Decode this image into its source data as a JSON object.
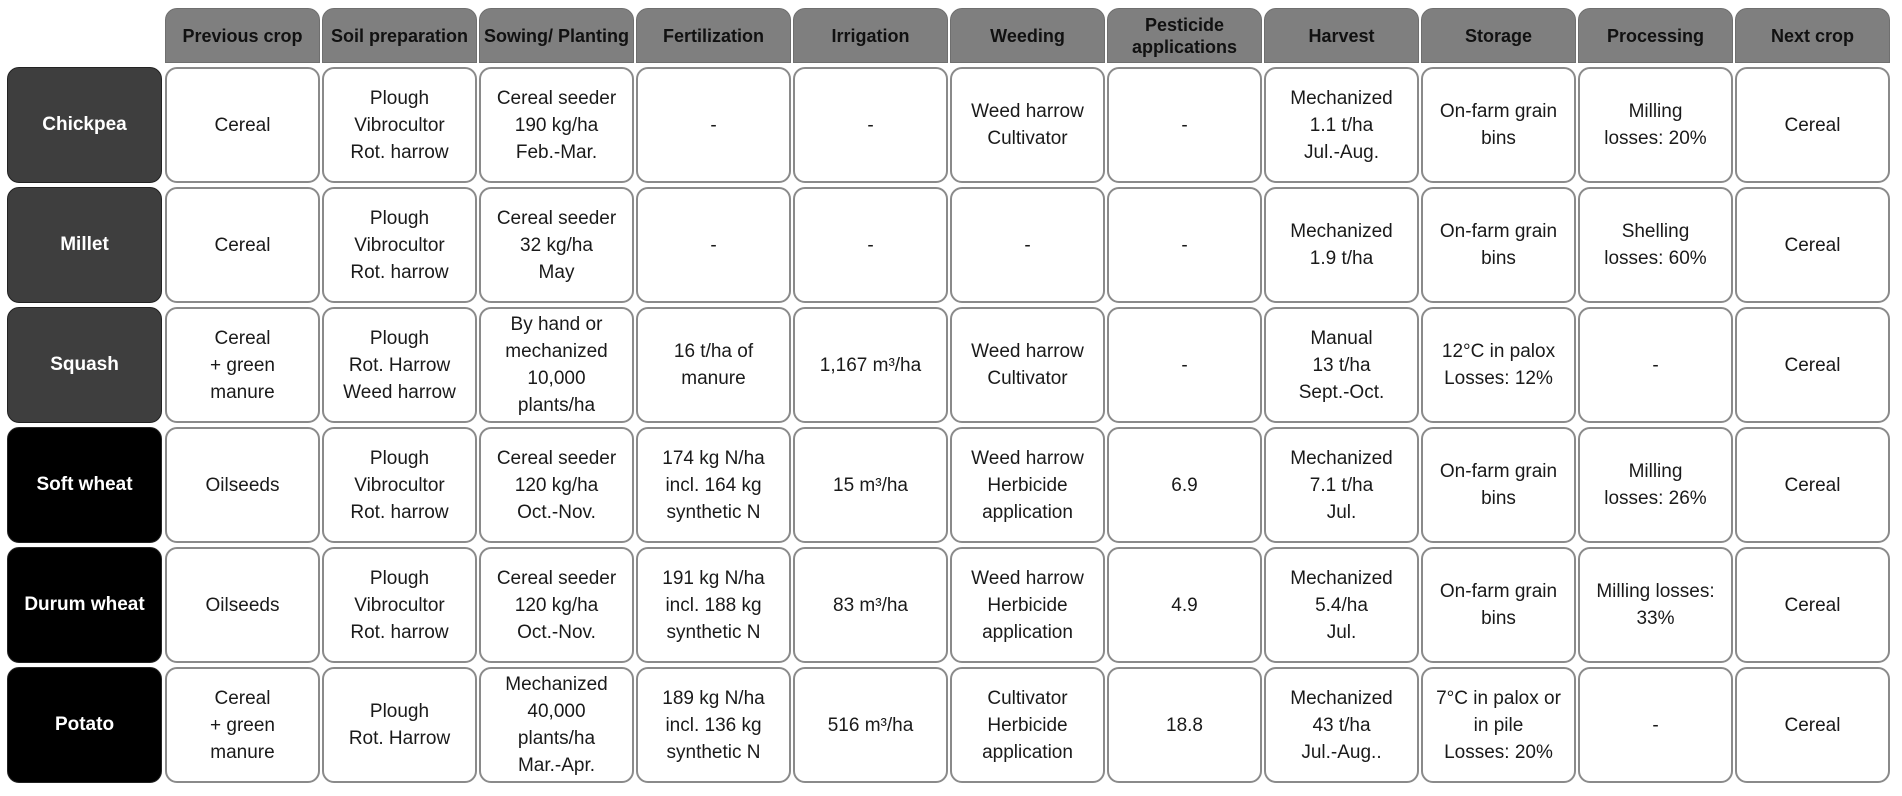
{
  "table": {
    "headers": [
      "Previous crop",
      "Soil preparation",
      "Sowing/ Planting",
      "Fertilization",
      "Irrigation",
      "Weeding",
      "Pesticide applications",
      "Harvest",
      "Storage",
      "Processing",
      "Next crop"
    ],
    "rows": [
      {
        "crop": "Chickpea",
        "label_color": "#3e3e3e",
        "cells": [
          "Cereal",
          "Plough\nVibrocultor\nRot. harrow",
          "Cereal seeder\n190 kg/ha\nFeb.-Mar.",
          "-",
          "-",
          "Weed harrow\nCultivator",
          "-",
          "Mechanized\n1.1 t/ha\nJul.-Aug.",
          "On-farm grain\nbins",
          "Milling\nlosses: 20%",
          "Cereal"
        ]
      },
      {
        "crop": "Millet",
        "label_color": "#3e3e3e",
        "cells": [
          "Cereal",
          "Plough\nVibrocultor\nRot. harrow",
          "Cereal seeder\n32 kg/ha\nMay",
          "-",
          "-",
          "-",
          "-",
          "Mechanized\n1.9 t/ha",
          "On-farm grain\nbins",
          "Shelling\nlosses: 60%",
          "Cereal"
        ]
      },
      {
        "crop": "Squash",
        "label_color": "#3e3e3e",
        "cells": [
          "Cereal\n+ green\nmanure",
          "Plough\nRot. Harrow\nWeed harrow",
          "By hand or\nmechanized\n10,000\nplants/ha",
          "16 t/ha of\nmanure",
          "1,167 m³/ha",
          "Weed harrow\nCultivator",
          "-",
          "Manual\n13 t/ha\nSept.-Oct.",
          "12°C in palox\nLosses: 12%",
          "-",
          "Cereal"
        ]
      },
      {
        "crop": "Soft wheat",
        "label_color": "#000000",
        "cells": [
          "Oilseeds",
          "Plough\nVibrocultor\nRot. harrow",
          "Cereal seeder\n120 kg/ha\nOct.-Nov.",
          "174 kg N/ha\nincl. 164 kg\nsynthetic N",
          "15 m³/ha",
          "Weed harrow\nHerbicide\napplication",
          "6.9",
          "Mechanized\n7.1 t/ha\nJul.",
          "On-farm grain\nbins",
          "Milling\nlosses: 26%",
          "Cereal"
        ]
      },
      {
        "crop": "Durum wheat",
        "label_color": "#000000",
        "cells": [
          "Oilseeds",
          "Plough\nVibrocultor\nRot. harrow",
          "Cereal seeder\n120 kg/ha\nOct.-Nov.",
          "191 kg N/ha\nincl. 188 kg\nsynthetic N",
          "83 m³/ha",
          "Weed harrow\nHerbicide\napplication",
          "4.9",
          "Mechanized\n5.4/ha\nJul.",
          "On-farm grain\nbins",
          "Milling losses:\n33%",
          "Cereal"
        ]
      },
      {
        "crop": "Potato",
        "label_color": "#000000",
        "cells": [
          "Cereal\n+ green\nmanure",
          "Plough\nRot. Harrow",
          "Mechanized\n40,000\nplants/ha\nMar.-Apr.",
          "189 kg N/ha\nincl. 136 kg\nsynthetic N",
          "516 m³/ha",
          "Cultivator\nHerbicide\napplication",
          "18.8",
          "Mechanized\n43 t/ha\nJul.-Aug..",
          "7°C in palox or\nin pile\nLosses: 20%",
          "-",
          "Cereal"
        ]
      }
    ]
  }
}
